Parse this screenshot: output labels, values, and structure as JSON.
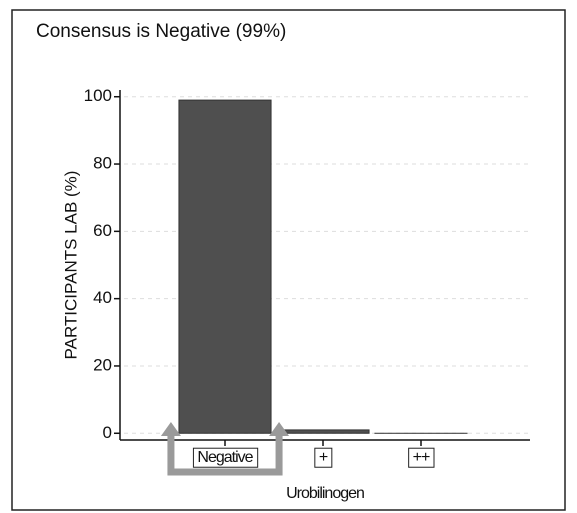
{
  "chart_data": {
    "type": "bar",
    "title": "Consensus is Negative (99%)",
    "ylabel": "PARTICIPANTS LAB (%)",
    "xlabel": "Urobilinogen",
    "categories": [
      "Negative",
      "+",
      "++"
    ],
    "values": [
      99,
      1,
      0
    ],
    "color": "#4f4f4f",
    "ylim": [
      -2,
      102
    ],
    "yticks": [
      0,
      20,
      40,
      60,
      80,
      100
    ],
    "grid": true
  }
}
